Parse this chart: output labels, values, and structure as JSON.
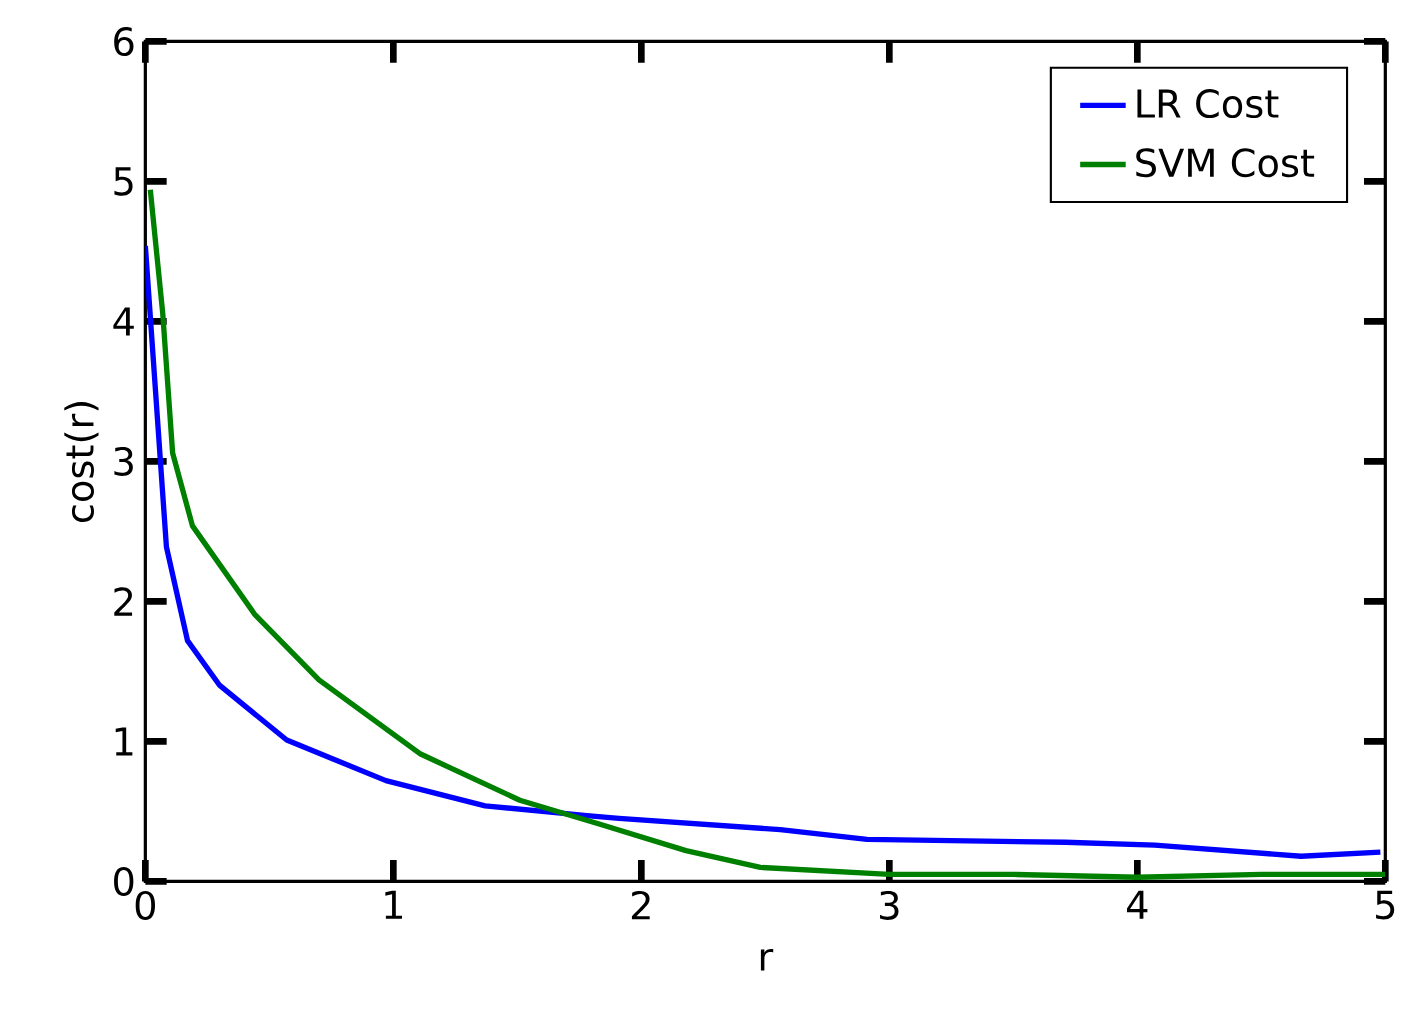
{
  "chart_data": {
    "type": "line",
    "xlabel": "r",
    "ylabel": "cost(r)",
    "xlim": [
      0,
      5
    ],
    "ylim": [
      0,
      6
    ],
    "xticks": [
      0,
      1,
      2,
      3,
      4,
      5
    ],
    "yticks": [
      0,
      1,
      2,
      3,
      4,
      5,
      6
    ],
    "legend": "top right",
    "grid": false,
    "marker": "none",
    "line_style": "solid",
    "series": [
      {
        "name": "LR Cost",
        "color": "#0000ff",
        "x": [
          0,
          0.085,
          0.17,
          0.3,
          0.57,
          0.97,
          1.37,
          1.78,
          1.91,
          2.56,
          2.91,
          3.71,
          4.07,
          4.66,
          4.98
        ],
        "values": [
          4.54,
          2.39,
          1.72,
          1.4,
          1.01,
          0.72,
          0.54,
          0.47,
          0.45,
          0.37,
          0.3,
          0.28,
          0.26,
          0.18,
          0.21
        ]
      },
      {
        "name": "SVM Cost",
        "color": "#008000",
        "x": [
          0.02,
          0.07,
          0.11,
          0.19,
          0.44,
          0.7,
          1.11,
          1.51,
          1.83,
          2.18,
          2.48,
          3.0,
          3.5,
          4.0,
          4.5,
          5.0
        ],
        "values": [
          4.94,
          4.06,
          3.06,
          2.54,
          1.91,
          1.44,
          0.91,
          0.58,
          0.41,
          0.22,
          0.1,
          0.05,
          0.05,
          0.03,
          0.05,
          0.05
        ]
      }
    ]
  }
}
